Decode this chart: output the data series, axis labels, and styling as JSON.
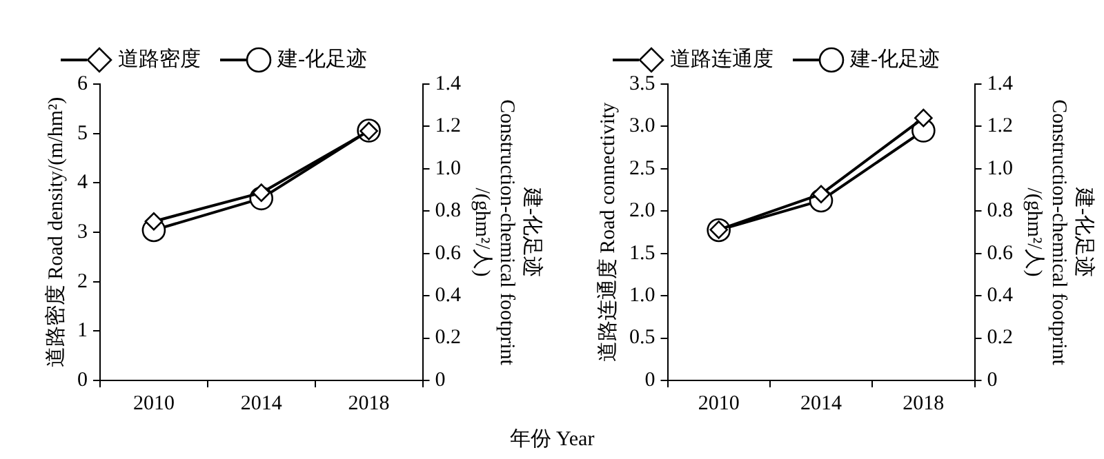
{
  "chart_data": [
    {
      "type": "line",
      "xlabel": "年份 Year",
      "ylabel": "道路密度 Road density/(m/hm²)",
      "y2label": "建-化足迹\nConstruction-chemical footprint\n/(ghm²/人)",
      "categories": [
        "2010",
        "2014",
        "2018"
      ],
      "series": [
        {
          "name": "道路密度",
          "color": "#000000",
          "marker": "diamond",
          "values": [
            3.22,
            3.8,
            5.05
          ]
        },
        {
          "name": "建-化足迹",
          "color": "#000000",
          "marker": "circle",
          "axis": "y2",
          "values": [
            0.71,
            0.86,
            1.18
          ]
        }
      ],
      "ylim": [
        0,
        6
      ],
      "yticks": [
        0,
        1,
        2,
        3,
        4,
        5,
        6
      ],
      "y2lim": [
        0,
        1.4
      ],
      "y2ticks": [
        0,
        0.2,
        0.4,
        0.6,
        0.8,
        {
          "value": 1,
          "label": "1.0"
        },
        1.2,
        1.4
      ],
      "grid": false,
      "legend": "top",
      "line_style": "solid"
    },
    {
      "type": "line",
      "ylabel": "道路连通度 Road connectivity",
      "y2label": "建-化足迹\nConstruction-chemical footprint\n/(ghm²/人)",
      "categories": [
        "2010",
        "2014",
        "2018"
      ],
      "series": [
        {
          "name": "道路连通度",
          "color": "#000000",
          "marker": "diamond",
          "values": [
            1.78,
            2.2,
            3.1
          ]
        },
        {
          "name": "建-化足迹",
          "color": "#000000",
          "marker": "circle",
          "axis": "y2",
          "values": [
            0.71,
            0.85,
            1.18
          ]
        }
      ],
      "ylim": [
        0,
        3.5
      ],
      "yticks": [
        0,
        {
          "value": 0.5,
          "label": "0.5"
        },
        {
          "value": 1,
          "label": "1.0"
        },
        {
          "value": 1.5,
          "label": "1.5"
        },
        {
          "value": 2,
          "label": "2.0"
        },
        {
          "value": 2.5,
          "label": "2.5"
        },
        {
          "value": 3,
          "label": "3.0"
        },
        {
          "value": 3.5,
          "label": "3.5"
        }
      ],
      "y2lim": [
        0,
        1.4
      ],
      "y2ticks": [
        0,
        0.2,
        0.4,
        0.6,
        0.8,
        {
          "value": 1,
          "label": "1.0"
        },
        1.2,
        1.4
      ],
      "grid": false,
      "legend": "top",
      "line_style": "solid"
    }
  ]
}
